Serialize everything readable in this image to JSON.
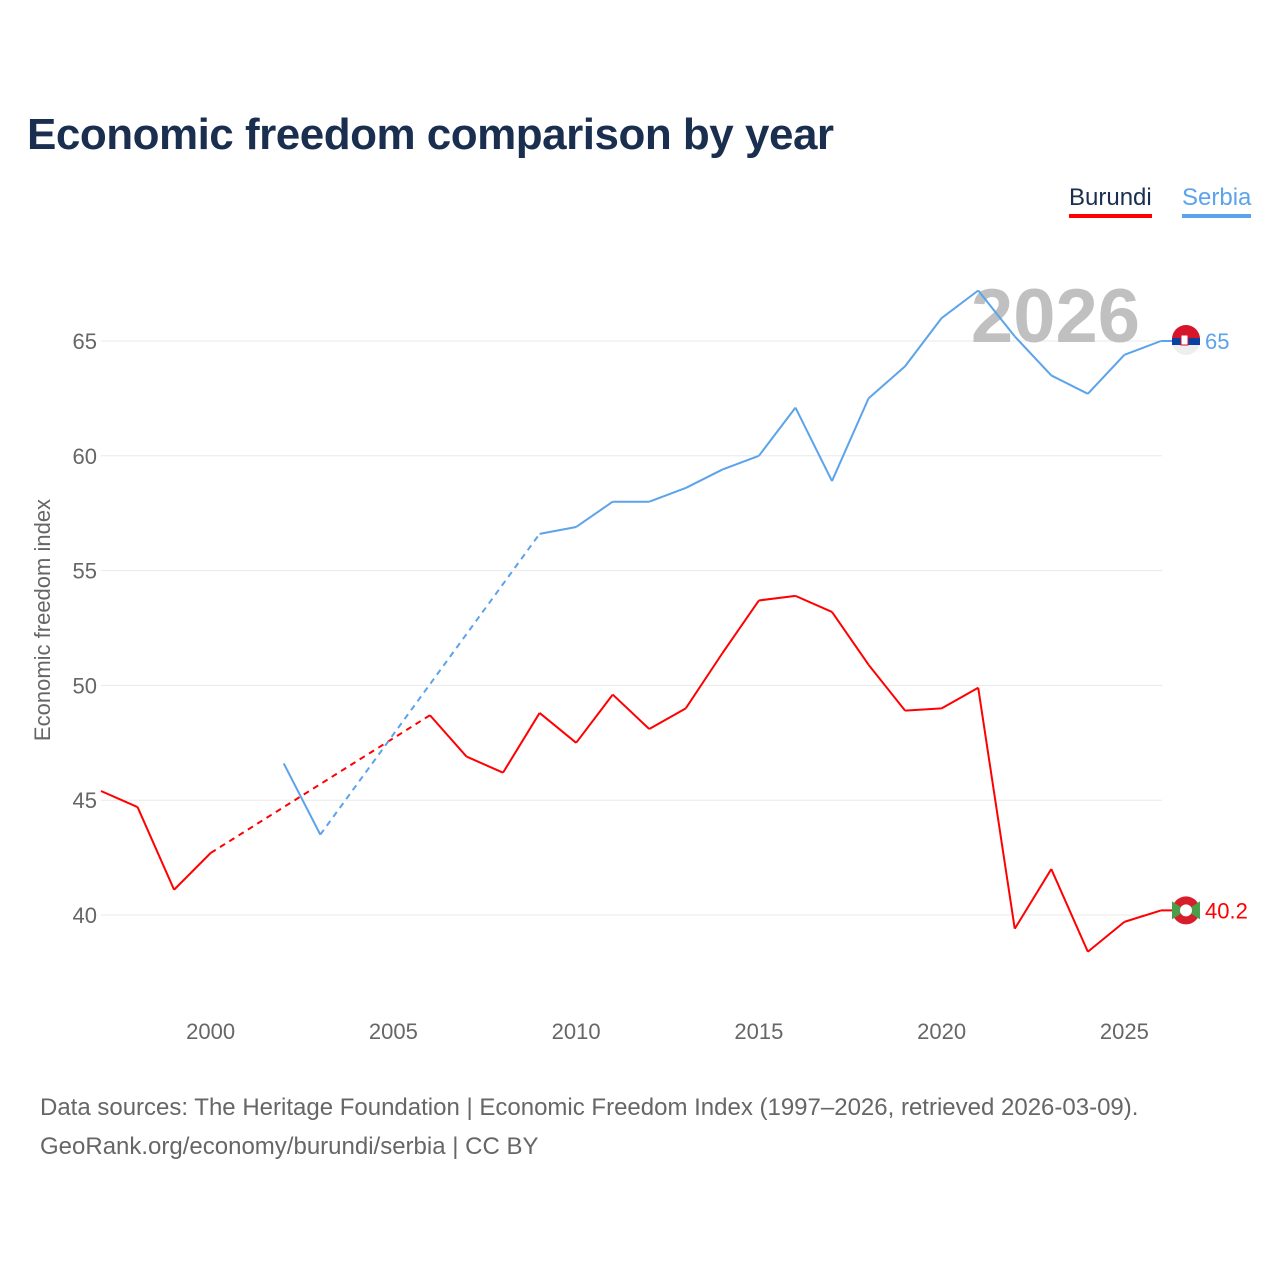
{
  "title": "Economic freedom comparison by year",
  "footer": {
    "line1": "Data sources: The Heritage Foundation | Economic Freedom Index (1997–2026, retrieved 2026-03-09).",
    "line2": "GeoRank.org/economy/burundi/serbia | CC BY"
  },
  "chart_data": {
    "type": "line",
    "title": "Economic freedom comparison by year",
    "xlabel": "",
    "ylabel": "Economic freedom index",
    "xlim": [
      1997,
      2026
    ],
    "ylim": [
      35.7,
      68
    ],
    "xticks": [
      2000,
      2005,
      2010,
      2015,
      2020,
      2025
    ],
    "yticks": [
      40,
      45,
      50,
      55,
      60,
      65
    ],
    "grid": true,
    "legend_position": "top-right",
    "year_label": "2026",
    "x": [
      1997,
      1998,
      1999,
      2000,
      2001,
      2002,
      2003,
      2004,
      2005,
      2006,
      2007,
      2008,
      2009,
      2010,
      2011,
      2012,
      2013,
      2014,
      2015,
      2016,
      2017,
      2018,
      2019,
      2020,
      2021,
      2022,
      2023,
      2024,
      2025,
      2026
    ],
    "series": [
      {
        "name": "Burundi",
        "color": "#ff0000",
        "end_label": "40.2",
        "values": [
          45.4,
          44.7,
          41.1,
          42.7,
          null,
          null,
          null,
          null,
          null,
          48.7,
          46.9,
          46.2,
          48.8,
          47.5,
          49.6,
          48.1,
          49.0,
          51.4,
          53.7,
          53.9,
          53.2,
          50.9,
          48.9,
          49.0,
          49.9,
          39.4,
          42.0,
          38.4,
          39.7,
          40.2
        ]
      },
      {
        "name": "Serbia",
        "color": "#5ba3ea",
        "end_label": "65",
        "values": [
          null,
          null,
          null,
          null,
          null,
          46.6,
          43.5,
          null,
          null,
          null,
          null,
          null,
          56.6,
          56.9,
          58.0,
          58.0,
          58.6,
          59.4,
          60.0,
          62.1,
          58.9,
          62.5,
          63.9,
          66.0,
          67.2,
          65.2,
          63.5,
          62.7,
          64.4,
          65.0
        ]
      }
    ]
  }
}
